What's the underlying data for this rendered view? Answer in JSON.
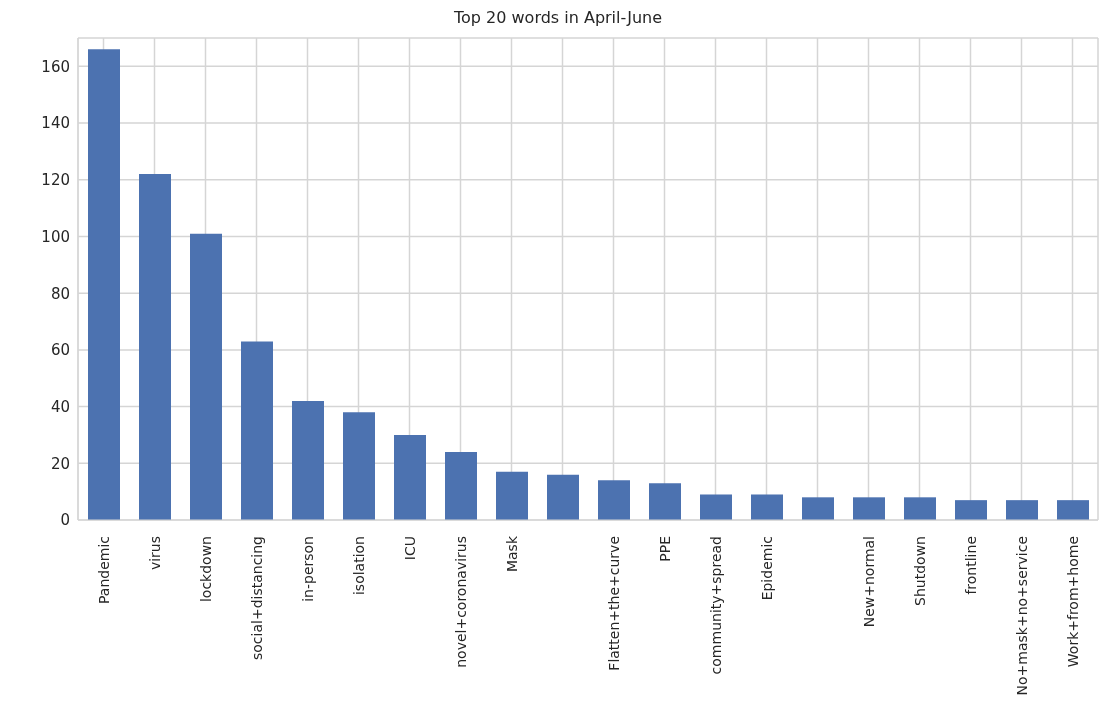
{
  "chart_data": {
    "type": "bar",
    "title": "Top 20 words in April-June",
    "categories": [
      "Pandemic",
      "virus",
      "lockdown",
      "social+distancing",
      "in-person",
      "isolation",
      "ICU",
      "novel+coronavirus",
      "Mask",
      null,
      "Flatten+the+curve",
      "PPE",
      "community+spread",
      "Epidemic",
      null,
      "New+normal",
      "Shutdown",
      "frontline",
      "No+mask+no+service",
      "Work+from+home"
    ],
    "values": [
      166,
      122,
      101,
      63,
      42,
      38,
      30,
      24,
      17,
      16,
      14,
      13,
      9,
      9,
      8,
      8,
      8,
      7,
      7,
      7
    ],
    "color": "#4c72b0",
    "ylim": [
      0,
      170
    ],
    "yticks": [
      0,
      20,
      40,
      60,
      80,
      100,
      120,
      140,
      160
    ],
    "grid": true,
    "legend": false
  }
}
